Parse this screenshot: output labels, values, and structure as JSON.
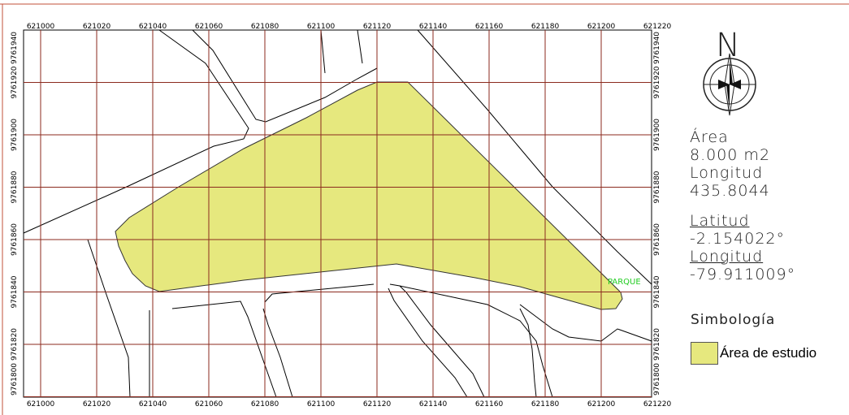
{
  "map": {
    "x_ticks": [
      "621000",
      "621020",
      "621040",
      "621060",
      "621080",
      "621100",
      "621120",
      "621140",
      "621160",
      "621180",
      "621200",
      "621220"
    ],
    "y_ticks": [
      "9761940",
      "9761920",
      "9761900",
      "9761880",
      "9761860",
      "9761840",
      "9761820",
      "9761800"
    ],
    "parque_label": "PARQUE",
    "colors": {
      "grid": "#8b2a1e",
      "study_area": "#e6e87e",
      "parque_label": "#22cc22",
      "border": "#c0503a"
    }
  },
  "north_arrow": {
    "letter": "N",
    "icon": "compass-rose-icon"
  },
  "info": {
    "area_label": "Área",
    "area_value": "8.000 m2",
    "longitud_label": "Longitud",
    "longitud_value": "435.8044",
    "latitud_title": "Latitud",
    "latitud_value": "-2.154022°",
    "longitud_title": "Longitud",
    "longitud_coord": "-79.911009°"
  },
  "legend": {
    "title": "Simbología",
    "items": [
      {
        "label": "Área de estudio",
        "color": "#e6e87e"
      }
    ]
  }
}
